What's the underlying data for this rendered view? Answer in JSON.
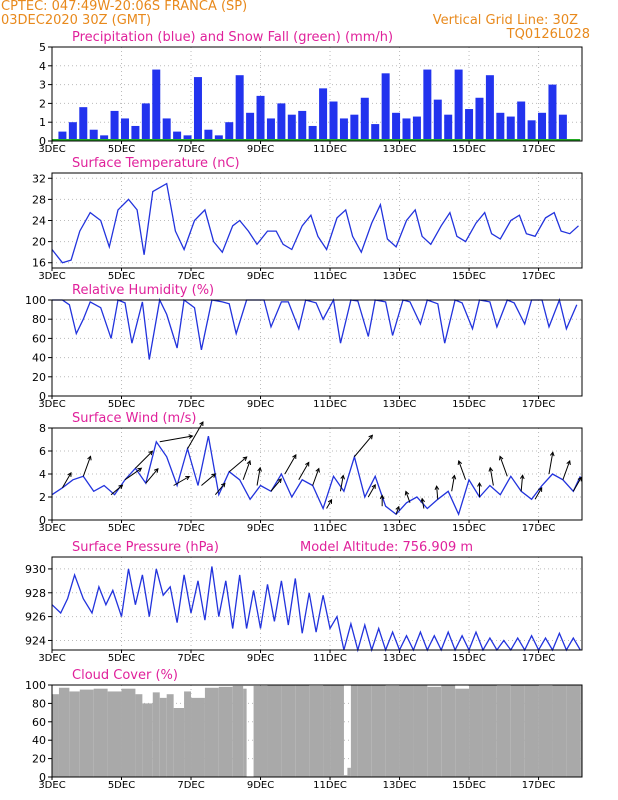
{
  "header": {
    "line1": "CPTEC:   047:49W-20:06S   FRANCA (SP)",
    "line2": "03DEC2020 30Z (GMT)",
    "grid_note": "Vertical Grid Line: 30Z",
    "code": "TQ0126L028"
  },
  "colors": {
    "title": "#e0219b",
    "header": "#e8891c",
    "line": "#2233dd",
    "precip": "#2233ee",
    "snow": "#22aa22",
    "cloud": "#a9a9a9",
    "arrow": "#000000"
  },
  "x_ticks": [
    "3DEC",
    "5DEC",
    "7DEC",
    "9DEC",
    "11DEC",
    "13DEC",
    "15DEC",
    "17DEC"
  ],
  "chart_data": [
    {
      "type": "bar",
      "title": "Precipitation (blue) and Snow Fall (green) (mm/h)",
      "ylim": [
        0,
        5
      ],
      "yticks": [
        "0",
        "1",
        "2",
        "3",
        "4",
        "5"
      ],
      "x_ticks": [
        "3DEC",
        "5DEC",
        "7DEC",
        "9DEC",
        "11DEC",
        "13DEC",
        "15DEC",
        "17DEC"
      ],
      "series": [
        {
          "name": "Precipitation",
          "x_days": [
            3.3,
            3.6,
            3.9,
            4.2,
            4.5,
            4.8,
            5.1,
            5.4,
            5.7,
            6.0,
            6.3,
            6.6,
            6.9,
            7.2,
            7.5,
            7.8,
            8.1,
            8.4,
            8.7,
            9.0,
            9.3,
            9.6,
            9.9,
            10.2,
            10.5,
            10.8,
            11.1,
            11.4,
            11.7,
            12.0,
            12.3,
            12.6,
            12.9,
            13.2,
            13.5,
            13.8,
            14.1,
            14.4,
            14.7,
            15.0,
            15.3,
            15.6,
            15.9,
            16.2,
            16.5,
            16.8,
            17.1,
            17.4,
            17.7
          ],
          "values": [
            0.5,
            1.0,
            1.8,
            0.6,
            0.3,
            1.6,
            1.2,
            0.8,
            2.0,
            3.8,
            1.2,
            0.5,
            0.3,
            3.4,
            0.6,
            0.3,
            1.0,
            3.5,
            1.5,
            2.4,
            1.2,
            2.0,
            1.4,
            1.6,
            0.8,
            2.8,
            2.1,
            1.2,
            1.4,
            2.3,
            0.9,
            3.6,
            1.5,
            1.2,
            1.3,
            3.8,
            2.2,
            1.4,
            3.8,
            1.7,
            2.3,
            3.5,
            1.5,
            1.3,
            2.1,
            1.1,
            1.5,
            3.0,
            1.4
          ]
        },
        {
          "name": "Snow Fall",
          "x_days": [
            3.0,
            18.2
          ],
          "values": [
            0,
            0
          ]
        }
      ]
    },
    {
      "type": "line",
      "title": "Surface Temperature (nC)",
      "ylim": [
        15,
        33
      ],
      "yticks": [
        "16",
        "20",
        "24",
        "28",
        "32"
      ],
      "x_ticks": [
        "3DEC",
        "5DEC",
        "7DEC",
        "9DEC",
        "11DEC",
        "13DEC",
        "15DEC",
        "17DEC"
      ],
      "series": [
        {
          "name": "Temperature",
          "x_days": [
            3.0,
            3.3,
            3.55,
            3.8,
            4.1,
            4.4,
            4.65,
            4.9,
            5.2,
            5.45,
            5.65,
            5.9,
            6.3,
            6.55,
            6.8,
            7.1,
            7.4,
            7.65,
            7.9,
            8.2,
            8.4,
            8.65,
            8.9,
            9.2,
            9.45,
            9.65,
            9.9,
            10.2,
            10.45,
            10.65,
            10.9,
            11.2,
            11.45,
            11.65,
            11.9,
            12.2,
            12.45,
            12.65,
            12.9,
            13.2,
            13.45,
            13.65,
            13.9,
            14.2,
            14.45,
            14.65,
            14.9,
            15.2,
            15.45,
            15.65,
            15.9,
            16.2,
            16.45,
            16.65,
            16.9,
            17.2,
            17.45,
            17.65,
            17.9,
            18.15
          ],
          "values": [
            18.5,
            16,
            16.5,
            22,
            25.5,
            24,
            19,
            26,
            28,
            26,
            17.5,
            29.5,
            31,
            22,
            18.5,
            24,
            26,
            20,
            18,
            23,
            24,
            22,
            19.5,
            22,
            22,
            19.5,
            18.5,
            23,
            25,
            21,
            18.5,
            24.5,
            26,
            21,
            18,
            23.5,
            27,
            20.5,
            19,
            24,
            26,
            21,
            19.5,
            23,
            25.5,
            21,
            20,
            23.5,
            25.5,
            21.5,
            20.5,
            24,
            25,
            21.5,
            21,
            24.5,
            25.5,
            22,
            21.5,
            23
          ]
        }
      ]
    },
    {
      "type": "line",
      "title": "Relative Humidity (%)",
      "ylim": [
        0,
        100
      ],
      "yticks": [
        "0",
        "20",
        "40",
        "60",
        "80",
        "100"
      ],
      "x_ticks": [
        "3DEC",
        "5DEC",
        "7DEC",
        "9DEC",
        "11DEC",
        "13DEC",
        "15DEC",
        "17DEC"
      ],
      "series": [
        {
          "name": "RH",
          "x_days": [
            3.0,
            3.3,
            3.5,
            3.7,
            3.9,
            4.1,
            4.4,
            4.7,
            4.9,
            5.1,
            5.3,
            5.6,
            5.8,
            6.1,
            6.3,
            6.6,
            6.8,
            7.1,
            7.3,
            7.6,
            7.9,
            8.1,
            8.3,
            8.6,
            8.8,
            9.1,
            9.3,
            9.6,
            9.8,
            10.1,
            10.3,
            10.6,
            10.8,
            11.1,
            11.3,
            11.6,
            11.8,
            12.1,
            12.3,
            12.6,
            12.8,
            13.1,
            13.3,
            13.6,
            13.8,
            14.1,
            14.3,
            14.6,
            14.8,
            15.1,
            15.3,
            15.6,
            15.8,
            16.1,
            16.3,
            16.6,
            16.8,
            17.1,
            17.3,
            17.6,
            17.8,
            18.1
          ],
          "values": [
            100,
            100,
            95,
            65,
            80,
            98,
            92,
            60,
            100,
            97,
            55,
            98,
            38,
            100,
            85,
            50,
            100,
            92,
            48,
            100,
            98,
            96,
            65,
            100,
            100,
            100,
            72,
            98,
            98,
            70,
            100,
            97,
            80,
            100,
            55,
            100,
            99,
            62,
            100,
            98,
            63,
            100,
            98,
            75,
            100,
            96,
            55,
            100,
            97,
            70,
            100,
            98,
            72,
            100,
            97,
            75,
            100,
            100,
            72,
            100,
            70,
            95
          ]
        }
      ]
    },
    {
      "type": "line",
      "title": "Surface Wind (m/s)",
      "ylim": [
        0,
        8
      ],
      "yticks": [
        "0",
        "2",
        "4",
        "6",
        "8"
      ],
      "x_ticks": [
        "3DEC",
        "5DEC",
        "7DEC",
        "9DEC",
        "11DEC",
        "13DEC",
        "15DEC",
        "17DEC"
      ],
      "series": [
        {
          "name": "Wind speed",
          "x_days": [
            3.0,
            3.3,
            3.6,
            3.9,
            4.2,
            4.5,
            4.8,
            5.1,
            5.4,
            5.7,
            6.0,
            6.3,
            6.6,
            6.9,
            7.2,
            7.5,
            7.8,
            8.1,
            8.4,
            8.7,
            9.0,
            9.3,
            9.6,
            9.9,
            10.2,
            10.5,
            10.8,
            11.1,
            11.4,
            11.7,
            12.0,
            12.3,
            12.6,
            12.9,
            13.2,
            13.5,
            13.8,
            14.1,
            14.4,
            14.7,
            15.0,
            15.3,
            15.6,
            15.9,
            16.2,
            16.5,
            16.8,
            17.1,
            17.4,
            17.7,
            18.0,
            18.2
          ],
          "values": [
            2.2,
            2.8,
            3.5,
            3.8,
            2.5,
            3.0,
            2.2,
            3.5,
            4.5,
            3.2,
            6.8,
            5.5,
            3.0,
            6.2,
            3.0,
            7.3,
            2.2,
            4.2,
            3.5,
            1.8,
            3.0,
            2.5,
            4.0,
            2.0,
            3.5,
            3.0,
            1.0,
            3.8,
            2.5,
            5.5,
            2.0,
            3.8,
            1.2,
            0.5,
            1.5,
            2.0,
            1.0,
            1.8,
            2.5,
            0.5,
            3.5,
            2.0,
            3.0,
            2.2,
            3.8,
            2.5,
            1.8,
            3.0,
            4.0,
            3.5,
            2.5,
            3.8
          ]
        },
        {
          "name": "Wind direction",
          "x_days": [
            3.3,
            3.9,
            4.7,
            5.1,
            5.4,
            5.7,
            6.1,
            6.5,
            6.9,
            7.3,
            7.7,
            8.1,
            8.5,
            8.9,
            9.3,
            9.7,
            10.1,
            10.5,
            10.9,
            11.3,
            11.7,
            12.1,
            12.5,
            12.9,
            13.3,
            13.7,
            14.1,
            14.5,
            14.9,
            15.3,
            15.7,
            16.1,
            16.5,
            16.9,
            17.3,
            17.7,
            18.0
          ],
          "direction_deg": [
            150,
            160,
            130,
            125,
            135,
            140,
            100,
            120,
            150,
            130,
            140,
            130,
            160,
            170,
            140,
            150,
            150,
            160,
            150,
            170,
            140,
            150,
            180,
            160,
            200,
            190,
            185,
            170,
            200,
            180,
            190,
            200,
            175,
            150,
            170,
            160,
            150
          ]
        }
      ]
    },
    {
      "type": "line",
      "title": "Surface Pressure (hPa)",
      "ylim": [
        923.2,
        931.0
      ],
      "yticks": [
        "924",
        "926",
        "928",
        "930"
      ],
      "annotation": "Model Altitude:  756.909  m",
      "x_ticks": [
        "3DEC",
        "5DEC",
        "7DEC",
        "9DEC",
        "11DEC",
        "13DEC",
        "15DEC",
        "17DEC"
      ],
      "series": [
        {
          "name": "Pressure",
          "x_days": [
            3.0,
            3.25,
            3.45,
            3.65,
            3.9,
            4.15,
            4.35,
            4.55,
            4.75,
            5.0,
            5.2,
            5.4,
            5.6,
            5.8,
            6.0,
            6.2,
            6.4,
            6.6,
            6.8,
            7.0,
            7.2,
            7.4,
            7.6,
            7.8,
            8.0,
            8.2,
            8.4,
            8.6,
            8.8,
            9.0,
            9.2,
            9.4,
            9.6,
            9.8,
            10.0,
            10.2,
            10.4,
            10.6,
            10.8,
            11.0,
            11.2,
            11.4,
            11.6,
            11.8,
            12.0,
            12.2,
            12.4,
            12.6,
            12.8,
            13.0,
            13.2,
            13.4,
            13.6,
            13.8,
            14.0,
            14.2,
            14.4,
            14.6,
            14.8,
            15.0,
            15.2,
            15.4,
            15.6,
            15.8,
            16.0,
            16.2,
            16.4,
            16.6,
            16.8,
            17.0,
            17.2,
            17.4,
            17.6,
            17.8,
            18.0,
            18.2
          ],
          "values": [
            927.0,
            926.3,
            927.5,
            929.5,
            927.5,
            926.3,
            928.5,
            927.0,
            928.2,
            926.0,
            930.0,
            927.0,
            929.5,
            926.0,
            930.0,
            927.8,
            928.5,
            925.5,
            929.5,
            926.3,
            929.0,
            925.7,
            930.2,
            926.0,
            929.0,
            925.0,
            929.5,
            925.0,
            928.2,
            925.0,
            928.7,
            925.6,
            929.0,
            925.3,
            929.2,
            924.6,
            928.0,
            924.7,
            927.8,
            925.0,
            926.0,
            923.2,
            925.4,
            923.2,
            925.3,
            923.2,
            925.0,
            923.2,
            924.7,
            923.2,
            924.4,
            923.2,
            924.7,
            923.2,
            924.4,
            923.2,
            924.7,
            923.2,
            924.4,
            923.2,
            924.7,
            923.2,
            924.2,
            923.2,
            924.0,
            923.2,
            924.2,
            923.2,
            924.4,
            923.2,
            924.2,
            923.2,
            924.6,
            923.2,
            924.2,
            923.2
          ]
        }
      ]
    },
    {
      "type": "bar",
      "title": "Cloud Cover (%)",
      "ylim": [
        0,
        100
      ],
      "yticks": [
        "0",
        "20",
        "40",
        "60",
        "80",
        "100"
      ],
      "x_ticks": [
        "3DEC",
        "5DEC",
        "7DEC",
        "9DEC",
        "11DEC",
        "13DEC",
        "15DEC",
        "17DEC"
      ],
      "series": [
        {
          "name": "Cloud cover",
          "x_days": [
            3.0,
            3.2,
            3.5,
            3.8,
            4.2,
            4.6,
            5.0,
            5.4,
            5.6,
            5.9,
            6.1,
            6.3,
            6.5,
            6.8,
            7.0,
            7.4,
            7.8,
            8.2,
            8.5,
            8.6,
            8.8,
            9.2,
            9.6,
            10.0,
            10.4,
            10.8,
            11.0,
            11.4,
            11.5,
            11.6,
            11.8,
            12.2,
            12.6,
            13.0,
            13.4,
            13.8,
            14.2,
            14.6,
            15.0,
            15.4,
            15.8,
            16.2,
            16.6,
            17.0,
            17.4,
            17.8,
            18.2
          ],
          "values": [
            90,
            97,
            93,
            95,
            96,
            93,
            96,
            90,
            80,
            92,
            86,
            90,
            75,
            93,
            86,
            97,
            98,
            99,
            96,
            0,
            99,
            100,
            100,
            100,
            99,
            100,
            100,
            2,
            10,
            100,
            100,
            100,
            99,
            100,
            100,
            98,
            100,
            96,
            100,
            100,
            99,
            100,
            100,
            99,
            100,
            100,
            100
          ]
        }
      ]
    }
  ]
}
